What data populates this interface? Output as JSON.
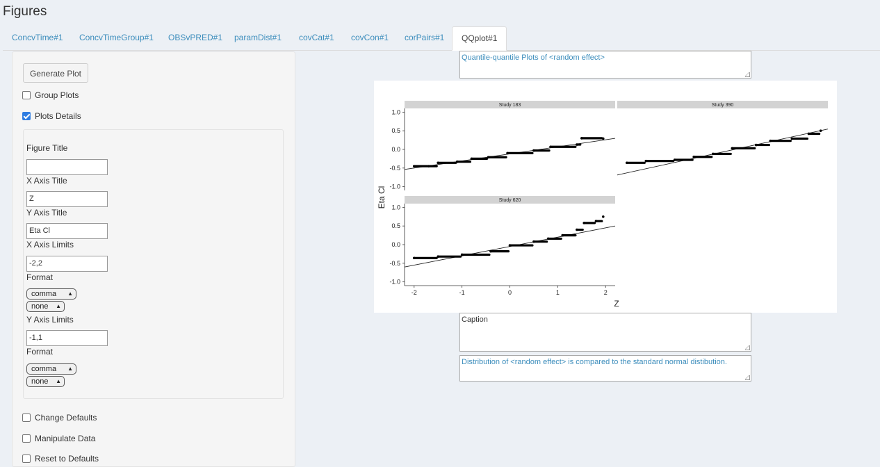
{
  "page_title": "Figures",
  "tabs": [
    {
      "label": "ConcvTime#1"
    },
    {
      "label": "ConcvTimeGroup#1"
    },
    {
      "label": "OBSvPRED#1"
    },
    {
      "label": "paramDist#1"
    },
    {
      "label": "covCat#1"
    },
    {
      "label": "covCon#1"
    },
    {
      "label": "corPairs#1"
    },
    {
      "label": "QQplot#1"
    }
  ],
  "active_tab": "QQplot#1",
  "sidebar": {
    "generate_button": "Generate Plot",
    "group_plots": {
      "label": "Group Plots",
      "checked": false
    },
    "plots_details": {
      "label": "Plots Details",
      "checked": true
    },
    "details": {
      "figure_title_label": "Figure Title",
      "figure_title_value": "",
      "x_axis_title_label": "X Axis Title",
      "x_axis_title_value": "Z",
      "y_axis_title_label": "Y Axis Title",
      "y_axis_title_value": "Eta Cl",
      "x_axis_limits_label": "X Axis Limits",
      "x_axis_limits_value": "-2,2",
      "x_format_label": "Format",
      "x_format_select1": "comma",
      "x_format_select2": "none",
      "y_axis_limits_label": "Y Axis Limits",
      "y_axis_limits_value": "-1,1",
      "y_format_label": "Format",
      "y_format_select1": "comma",
      "y_format_select2": "none"
    },
    "change_defaults": {
      "label": "Change Defaults",
      "checked": false
    },
    "manipulate_data": {
      "label": "Manipulate Data",
      "checked": false
    },
    "reset_defaults": {
      "label": "Reset to Defaults",
      "checked": false
    }
  },
  "title_textarea": "Quantile-quantile Plots of <random effect>",
  "caption_textarea": "Caption",
  "footnote_textarea": "Distribution of <random effect> is compared to the standard normal distibution.",
  "colors": {
    "link": "#3c8dbc",
    "strip": "#d3d3d3",
    "points": "#000000"
  },
  "chart_data": {
    "type": "scatter",
    "xlabel": "Z",
    "ylabel": "Eta Cl",
    "xlim": [
      -2.2,
      2.2
    ],
    "ylim": [
      -1.1,
      1.1
    ],
    "x_ticks": [
      "-2",
      "-1",
      "0",
      "1",
      "2"
    ],
    "y_ticks": [
      "-1.0",
      "-0.5",
      "0.0",
      "0.5",
      "1.0"
    ],
    "panels": [
      {
        "name": "Study 183",
        "line": {
          "slope": 0.19,
          "intercept": -0.12
        },
        "points": [
          [
            -2.0,
            -0.45
          ],
          [
            -1.7,
            -0.45
          ],
          [
            -1.5,
            -0.36
          ],
          [
            -1.1,
            -0.33
          ],
          [
            -0.8,
            -0.25
          ],
          [
            -0.45,
            -0.21
          ],
          [
            -0.05,
            -0.1
          ],
          [
            0.5,
            -0.03
          ],
          [
            0.85,
            0.07
          ],
          [
            1.4,
            0.13
          ],
          [
            1.5,
            0.3
          ],
          [
            1.95,
            0.29
          ]
        ]
      },
      {
        "name": "Study 390",
        "line": {
          "slope": 0.28,
          "intercept": -0.07
        },
        "points": [
          [
            -2.0,
            -0.36
          ],
          [
            -1.6,
            -0.31
          ],
          [
            -1.0,
            -0.28
          ],
          [
            -0.6,
            -0.2
          ],
          [
            -0.2,
            -0.12
          ],
          [
            0.2,
            0.03
          ],
          [
            0.7,
            0.12
          ],
          [
            1.0,
            0.23
          ],
          [
            1.45,
            0.29
          ],
          [
            1.8,
            0.42
          ],
          [
            2.05,
            0.5
          ]
        ]
      },
      {
        "name": "Study 620",
        "line": {
          "slope": 0.25,
          "intercept": -0.05
        },
        "points": [
          [
            -2.0,
            -0.36
          ],
          [
            -1.5,
            -0.32
          ],
          [
            -1.0,
            -0.27
          ],
          [
            -0.4,
            -0.18
          ],
          [
            0.0,
            -0.02
          ],
          [
            0.5,
            0.08
          ],
          [
            0.8,
            0.16
          ],
          [
            1.1,
            0.25
          ],
          [
            1.4,
            0.4
          ],
          [
            1.55,
            0.58
          ],
          [
            1.8,
            0.63
          ],
          [
            1.95,
            0.75
          ]
        ]
      }
    ]
  }
}
